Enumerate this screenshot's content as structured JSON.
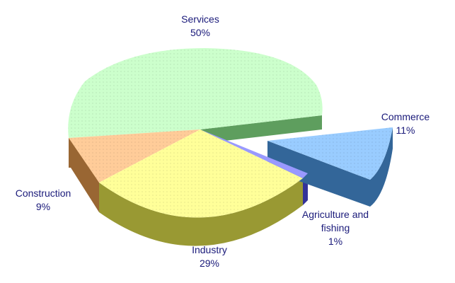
{
  "chart_data": {
    "type": "pie",
    "style": "3d-exploded",
    "slices": [
      {
        "name": "Services",
        "value": 50,
        "label": "50%",
        "color": "#ccffcc",
        "side_color": "#5e9e5e"
      },
      {
        "name": "Commerce",
        "value": 11,
        "label": "11%",
        "color": "#99ccff",
        "side_color": "#336699"
      },
      {
        "name": "Agriculture and fishing",
        "value": 1,
        "label": "1%",
        "color": "#9999ff",
        "side_color": "#333399"
      },
      {
        "name": "Industry",
        "value": 29,
        "label": "29%",
        "color": "#ffff99",
        "side_color": "#999933"
      },
      {
        "name": "Construction",
        "value": 9,
        "label": "9%",
        "color": "#ffcc99",
        "side_color": "#996633"
      }
    ],
    "exploded": [
      "Commerce"
    ]
  }
}
